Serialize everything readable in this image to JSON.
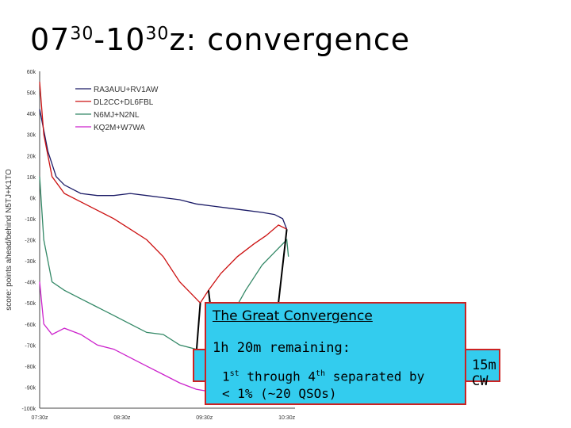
{
  "slide": {
    "title_start_hh": "07",
    "title_start_mm": "30",
    "title_end_hh": "10",
    "title_end_mm": "30",
    "title_suffix": "z:  convergence"
  },
  "chart_data": {
    "type": "line",
    "ylabel": "score: points ahead/behind N5TJ+K1TO",
    "ylim": [
      -100,
      60
    ],
    "yticks": [
      "60k",
      "50k",
      "40k",
      "30k",
      "20k",
      "10k",
      "0k",
      "-10k",
      "-20k",
      "-30k",
      "-40k",
      "-50k",
      "-60k",
      "-70k",
      "-80k",
      "-90k",
      "-100k"
    ],
    "x_ticks": [
      "07:30z",
      "08:30z",
      "09:30z",
      "10:30z"
    ],
    "x_hours": [
      0,
      1,
      2,
      3
    ],
    "x_range": [
      0,
      3.1
    ],
    "legend_position": "top-left",
    "series": [
      {
        "name": "RA3AUU+RV1AW",
        "color": "#1a1a66",
        "x": [
          0,
          0.1,
          0.2,
          0.3,
          0.5,
          0.7,
          0.9,
          1.1,
          1.3,
          1.5,
          1.7,
          1.9,
          2.1,
          2.3,
          2.5,
          2.7,
          2.85,
          2.95,
          3.0
        ],
        "y": [
          42,
          22,
          10,
          6,
          2,
          1,
          1,
          2,
          1,
          0,
          -1,
          -3,
          -4,
          -5,
          -6,
          -7,
          -8,
          -10,
          -15
        ]
      },
      {
        "name": "DL2CC+DL6FBL",
        "color": "#cc1111",
        "x": [
          0,
          0.05,
          0.15,
          0.3,
          0.5,
          0.7,
          0.9,
          1.1,
          1.3,
          1.5,
          1.7,
          1.85,
          1.95,
          2.05,
          2.2,
          2.4,
          2.6,
          2.75,
          2.9,
          3.0
        ],
        "y": [
          55,
          30,
          10,
          2,
          -2,
          -6,
          -10,
          -15,
          -20,
          -28,
          -40,
          -46,
          -50,
          -44,
          -36,
          -28,
          -22,
          -18,
          -13,
          -15
        ]
      },
      {
        "name": "N6MJ+N2NL",
        "color": "#338866",
        "x": [
          0,
          0.05,
          0.15,
          0.3,
          0.5,
          0.7,
          0.9,
          1.1,
          1.3,
          1.5,
          1.7,
          1.9,
          2.0,
          2.1,
          2.3,
          2.5,
          2.7,
          2.85,
          3.0,
          3.02
        ],
        "y": [
          10,
          -20,
          -40,
          -44,
          -48,
          -52,
          -56,
          -60,
          -64,
          -65,
          -70,
          -72,
          -76,
          -70,
          -58,
          -44,
          -32,
          -26,
          -20,
          -28
        ]
      },
      {
        "name": "KQ2M+W7WA",
        "color": "#cc22cc",
        "x": [
          0,
          0.05,
          0.15,
          0.3,
          0.5,
          0.7,
          0.9,
          1.1,
          1.3,
          1.5,
          1.7,
          1.9,
          2.05
        ],
        "y": [
          -40,
          -60,
          -65,
          -62,
          -65,
          -70,
          -72,
          -76,
          -80,
          -84,
          -88,
          -91,
          -92
        ]
      }
    ],
    "arrow_targets": [
      {
        "x": 1.95,
        "y": -50
      },
      {
        "x": 2.05,
        "y": -44
      },
      {
        "x": 3.0,
        "y": -15
      }
    ]
  },
  "callouts": {
    "heading": "The Great Convergence",
    "remaining": "1h 20m remaining:",
    "line1_pre": "1",
    "line1_sup": "st",
    "line1_mid": " through 4",
    "line1_sup2": "th",
    "line1_post": " separated by",
    "line2": "< 1% (~20 QSOs)",
    "band_label": "15m CW"
  },
  "colors": {
    "callout_fill": "#33ccee",
    "callout_border": "#cc2222",
    "axis": "#444444"
  }
}
